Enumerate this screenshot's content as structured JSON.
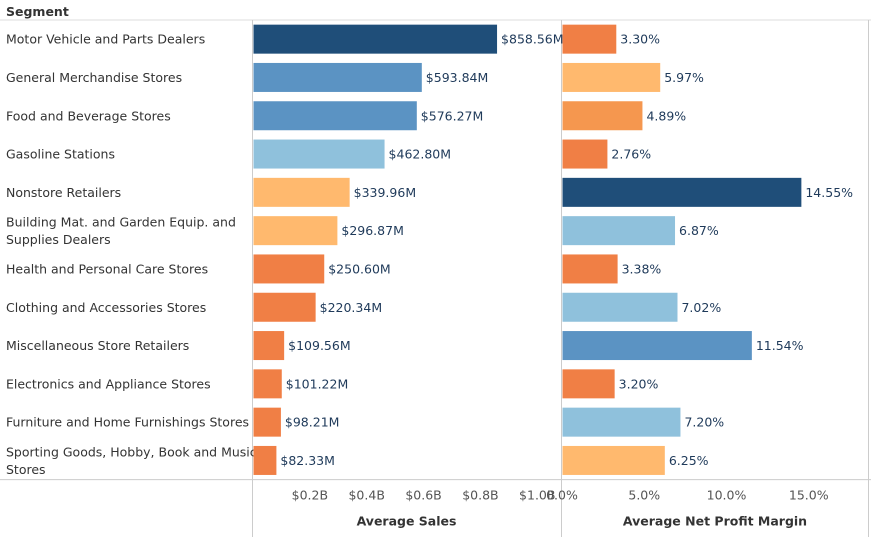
{
  "chart_data": {
    "type": "bar",
    "header": "Segment",
    "categories": [
      "Motor Vehicle and Parts Dealers",
      "General Merchandise Stores",
      "Food and Beverage Stores",
      "Gasoline Stations",
      "Nonstore Retailers",
      "Building Mat. and Garden Equip. and Supplies Dealers",
      "Health and Personal Care Stores",
      "Clothing and Accessories Stores",
      "Miscellaneous Store Retailers",
      "Electronics and Appliance Stores",
      "Furniture and Home Furnishings Stores",
      "Sporting Goods, Hobby, Book and Music Stores"
    ],
    "category_lines": [
      [
        "Motor Vehicle and Parts Dealers"
      ],
      [
        "General Merchandise Stores"
      ],
      [
        "Food and Beverage Stores"
      ],
      [
        "Gasoline Stations"
      ],
      [
        "Nonstore Retailers"
      ],
      [
        "Building Mat. and Garden Equip. and",
        "Supplies Dealers"
      ],
      [
        "Health and Personal Care Stores"
      ],
      [
        "Clothing and Accessories Stores"
      ],
      [
        "Miscellaneous Store Retailers"
      ],
      [
        "Electronics and Appliance Stores"
      ],
      [
        "Furniture and Home Furnishings Stores"
      ],
      [
        "Sporting Goods, Hobby, Book and Music",
        "Stores"
      ]
    ],
    "series": [
      {
        "values": [
          858.56,
          593.84,
          576.27,
          462.8,
          339.96,
          296.87,
          250.6,
          220.34,
          109.56,
          101.22,
          98.21,
          82.33
        ],
        "labels": [
          "$858.56M",
          "$593.84M",
          "$576.27M",
          "$462.80M",
          "$339.96M",
          "$296.87M",
          "$250.60M",
          "$220.34M",
          "$109.56M",
          "$101.22M",
          "$98.21M",
          "$82.33M"
        ],
        "colors": [
          "#1f4e79",
          "#5b93c3",
          "#5b93c3",
          "#8fc1dc",
          "#ffb96e",
          "#ffb96e",
          "#f07f45",
          "#f07f45",
          "#f07f45",
          "#f07f45",
          "#f07f45",
          "#f07f45"
        ],
        "xlabel": "Average Sales",
        "xlim": [
          0,
          1.08
        ],
        "ticks": [
          0.2,
          0.4,
          0.6,
          0.8,
          1.0
        ],
        "tick_labels": [
          "$0.2B",
          "$0.4B",
          "$0.6B",
          "$0.8B",
          "$1.0B"
        ]
      },
      {
        "values": [
          3.3,
          5.97,
          4.89,
          2.76,
          14.55,
          6.87,
          3.38,
          7.02,
          11.54,
          3.2,
          7.2,
          6.25
        ],
        "labels": [
          "3.30%",
          "5.97%",
          "4.89%",
          "2.76%",
          "14.55%",
          "6.87%",
          "3.38%",
          "7.02%",
          "11.54%",
          "3.20%",
          "7.20%",
          "6.25%"
        ],
        "colors": [
          "#f07f45",
          "#ffb96e",
          "#f5974f",
          "#f07f45",
          "#1f4e79",
          "#8fc1dc",
          "#f07f45",
          "#8fc1dc",
          "#5b93c3",
          "#f07f45",
          "#8fc1dc",
          "#ffb96e"
        ],
        "xlabel": "Average Net Profit Margin",
        "xlim": [
          0,
          18.6
        ],
        "ticks": [
          0,
          5,
          10,
          15
        ],
        "tick_labels": [
          "0.0%",
          "5.0%",
          "10.0%",
          "15.0%"
        ]
      }
    ]
  }
}
